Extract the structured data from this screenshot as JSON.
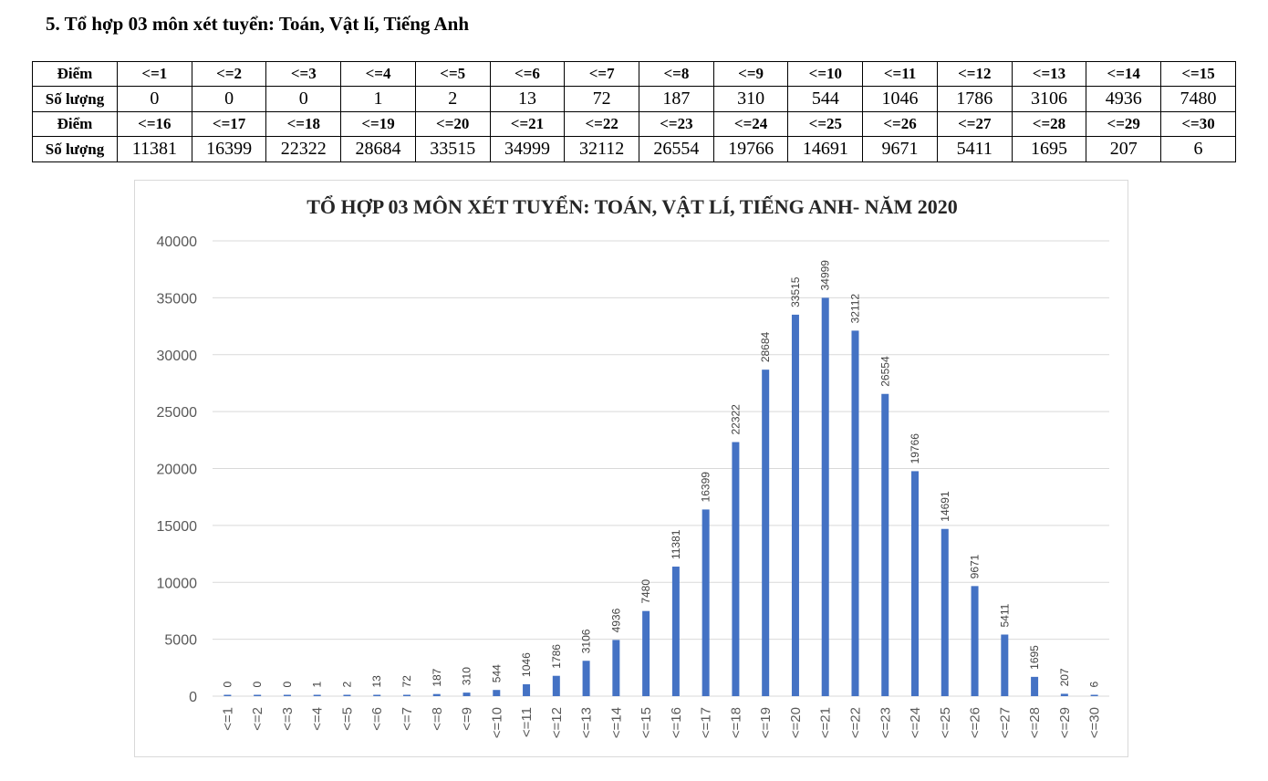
{
  "heading": "5. Tổ hợp 03 môn xét tuyển: Toán, Vật lí, Tiếng Anh",
  "table": {
    "label_header": "Điểm",
    "count_header": "Số lượng",
    "rows": [
      {
        "labels": [
          "<=1",
          "<=2",
          "<=3",
          "<=4",
          "<=5",
          "<=6",
          "<=7",
          "<=8",
          "<=9",
          "<=10",
          "<=11",
          "<=12",
          "<=13",
          "<=14",
          "<=15"
        ],
        "counts": [
          "0",
          "0",
          "0",
          "1",
          "2",
          "13",
          "72",
          "187",
          "310",
          "544",
          "1046",
          "1786",
          "3106",
          "4936",
          "7480"
        ]
      },
      {
        "labels": [
          "<=16",
          "<=17",
          "<=18",
          "<=19",
          "<=20",
          "<=21",
          "<=22",
          "<=23",
          "<=24",
          "<=25",
          "<=26",
          "<=27",
          "<=28",
          "<=29",
          "<=30"
        ],
        "counts": [
          "11381",
          "16399",
          "22322",
          "28684",
          "33515",
          "34999",
          "32112",
          "26554",
          "19766",
          "14691",
          "9671",
          "5411",
          "1695",
          "207",
          "6"
        ]
      }
    ]
  },
  "chart_data": {
    "type": "bar",
    "title": "TỔ HỢP 03 MÔN XÉT TUYỂN: TOÁN, VẬT LÍ, TIẾNG ANH- NĂM 2020",
    "categories": [
      "<=1",
      "<=2",
      "<=3",
      "<=4",
      "<=5",
      "<=6",
      "<=7",
      "<=8",
      "<=9",
      "<=10",
      "<=11",
      "<=12",
      "<=13",
      "<=14",
      "<=15",
      "<=16",
      "<=17",
      "<=18",
      "<=19",
      "<=20",
      "<=21",
      "<=22",
      "<=23",
      "<=24",
      "<=25",
      "<=26",
      "<=27",
      "<=28",
      "<=29",
      "<=30"
    ],
    "values": [
      0,
      0,
      0,
      1,
      2,
      13,
      72,
      187,
      310,
      544,
      1046,
      1786,
      3106,
      4936,
      7480,
      11381,
      16399,
      22322,
      28684,
      33515,
      34999,
      32112,
      26554,
      19766,
      14691,
      9671,
      5411,
      1695,
      207,
      6
    ],
    "yticks": [
      0,
      5000,
      10000,
      15000,
      20000,
      25000,
      30000,
      35000,
      40000
    ],
    "ylim": [
      0,
      40000
    ],
    "xlabel": "",
    "ylabel": "",
    "grid": true,
    "legend": "none",
    "bar_color": "#4472c4",
    "gridline_color": "#d9d9d9"
  }
}
